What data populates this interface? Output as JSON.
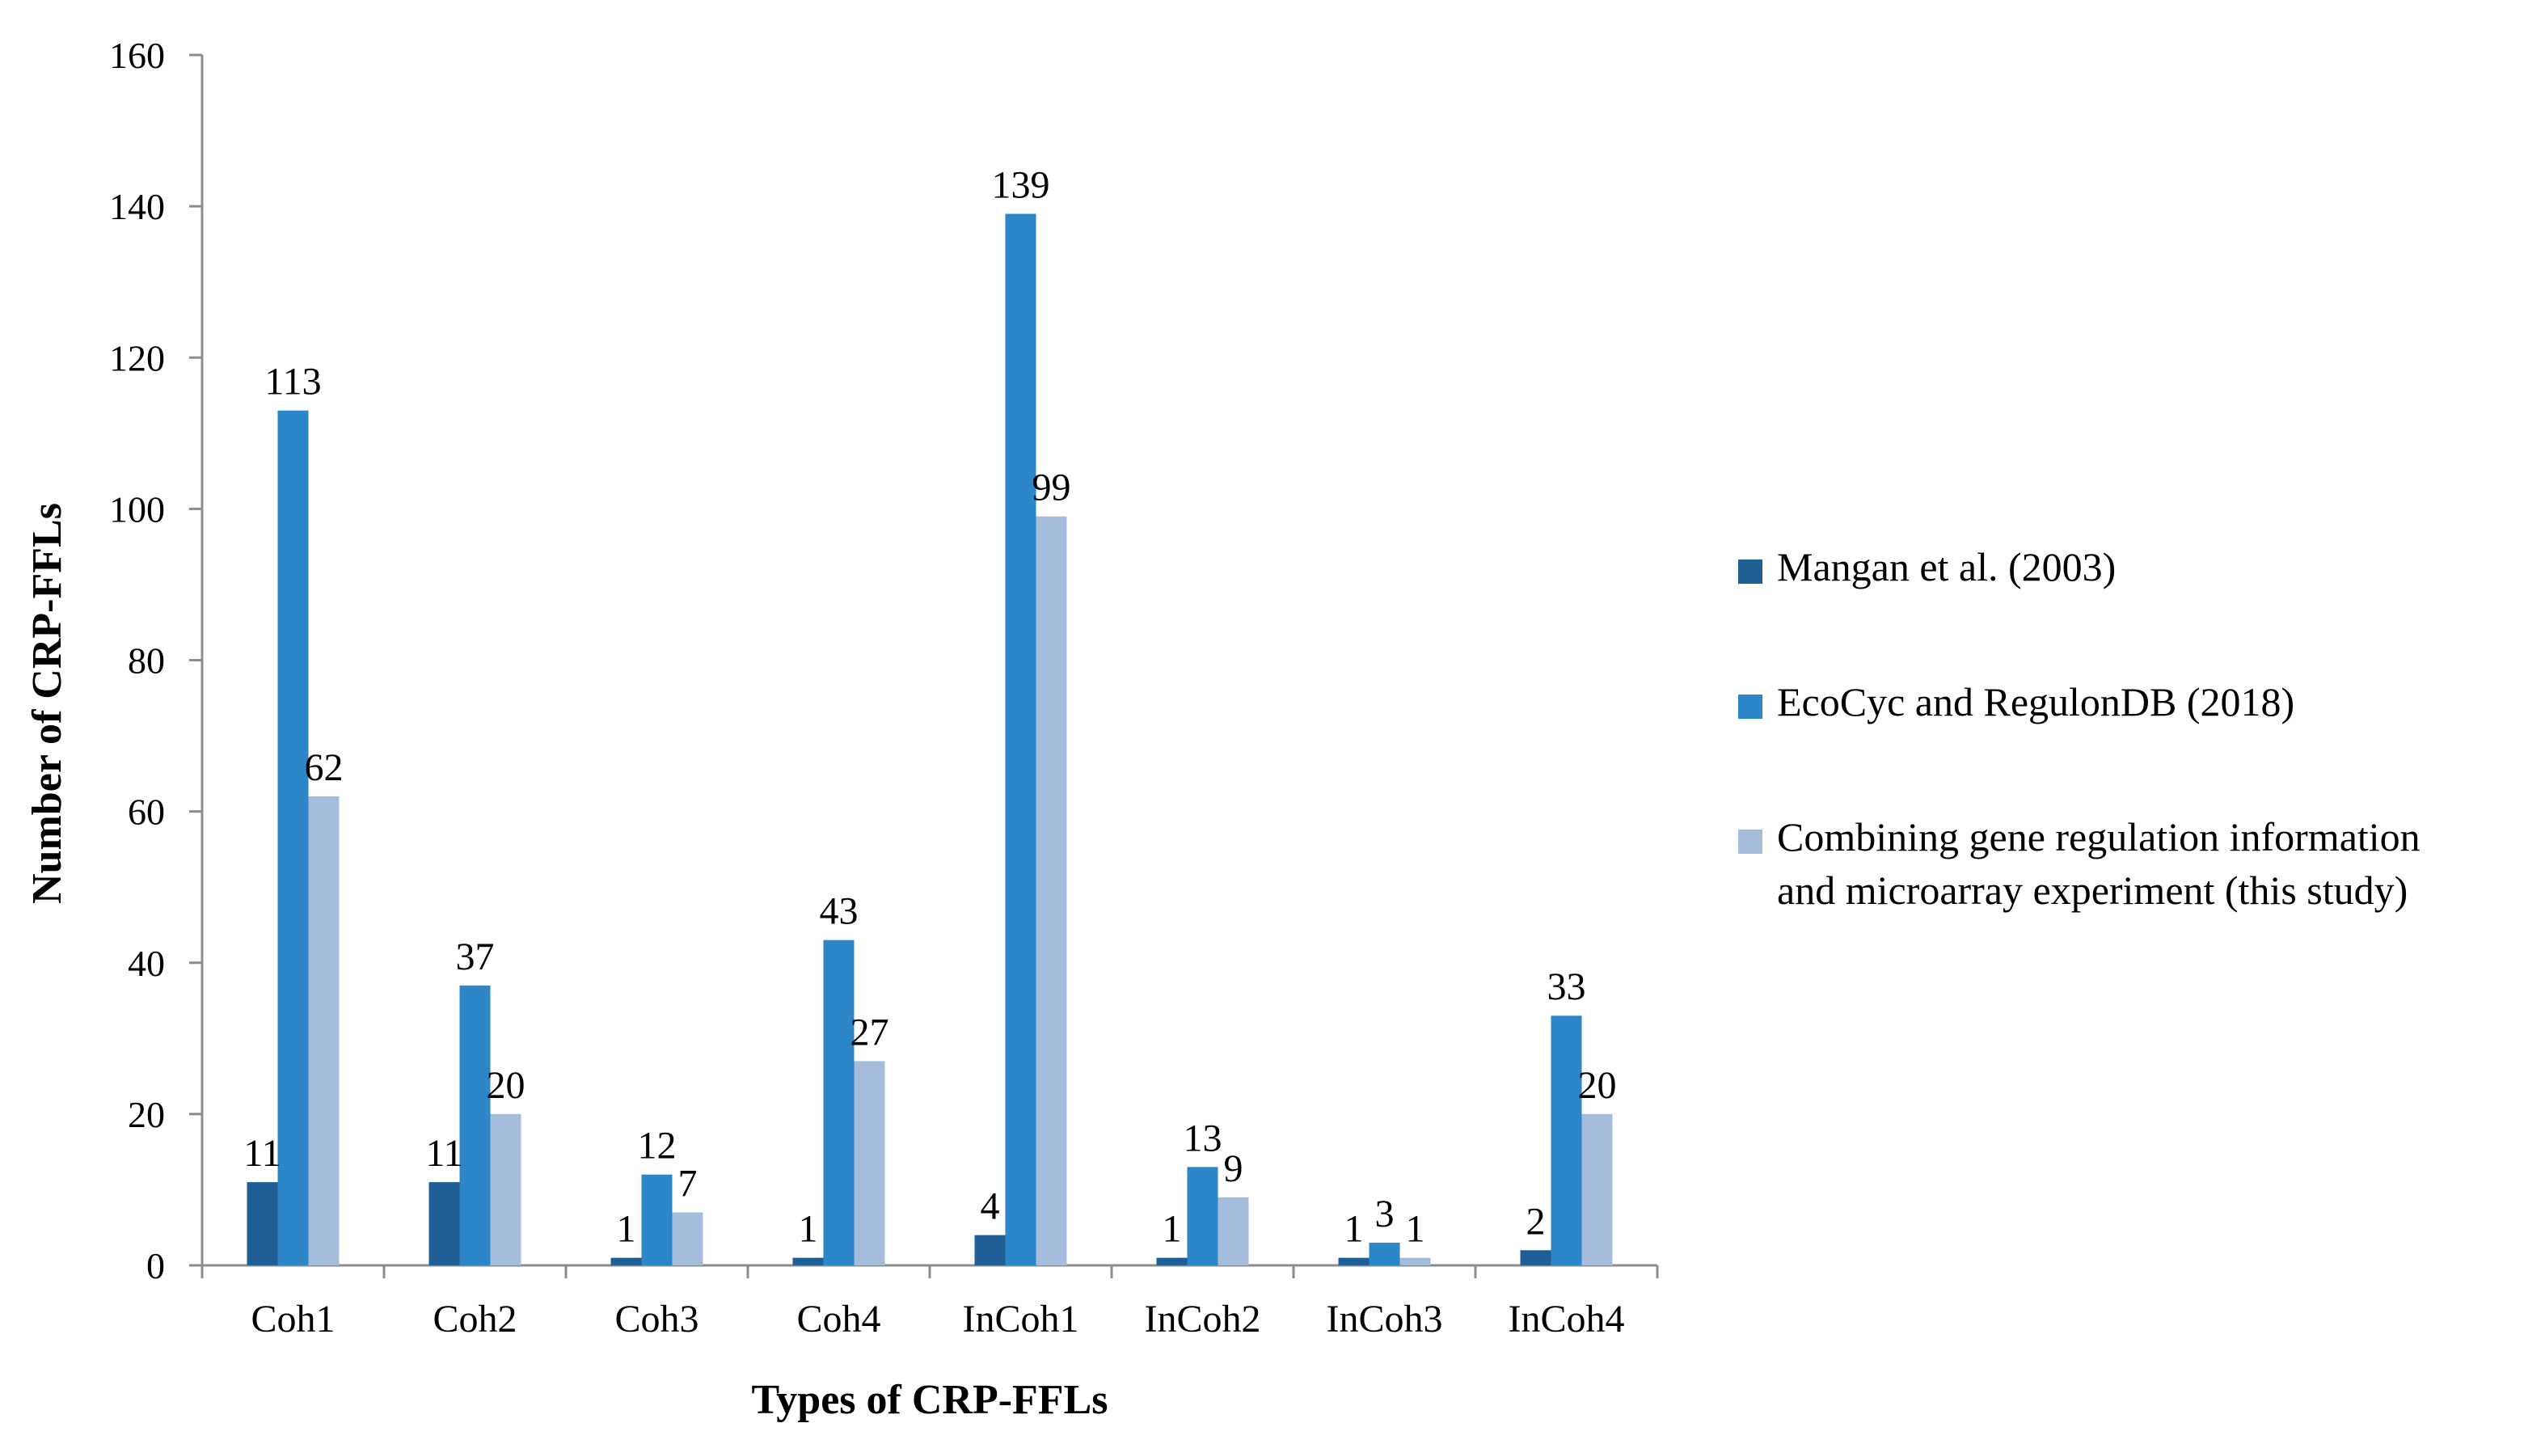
{
  "chart_data": {
    "type": "bar",
    "title": "",
    "xlabel": "Types of CRP-FFLs",
    "ylabel": "Number of CRP-FFLs",
    "ylim": [
      0,
      160
    ],
    "yticks": [
      0,
      20,
      40,
      60,
      80,
      100,
      120,
      140,
      160
    ],
    "grid": false,
    "legend_position": "right",
    "categories": [
      "Coh1",
      "Coh2",
      "Coh3",
      "Coh4",
      "InCoh1",
      "InCoh2",
      "InCoh3",
      "InCoh4"
    ],
    "series": [
      {
        "name": "Mangan et al. (2003)",
        "legend_lines": [
          "Mangan et al. (2003)"
        ],
        "color": "#1f5f96",
        "values": [
          11,
          11,
          1,
          1,
          4,
          1,
          1,
          2
        ],
        "labels": [
          "11",
          "11",
          "1",
          "1",
          "4",
          "1",
          "1",
          "2"
        ]
      },
      {
        "name": "EcoCyc and RegulonDB (2018)",
        "legend_lines": [
          "EcoCyc and RegulonDB (2018)"
        ],
        "color": "#2c86c8",
        "values": [
          113,
          37,
          12,
          43,
          139,
          13,
          3,
          33
        ],
        "labels": [
          "113",
          "37",
          "12",
          "43",
          "139",
          "13",
          "3",
          "33"
        ]
      },
      {
        "name": "Combining gene regulation information and microarray experiment (this study)",
        "legend_lines": [
          "Combining gene regulation information",
          "and microarray experiment (this study)"
        ],
        "color": "#a6bcdc",
        "values": [
          62,
          20,
          7,
          27,
          99,
          9,
          1,
          20
        ],
        "labels": [
          "62",
          "20",
          "7",
          "27",
          "99",
          "9",
          "1",
          "20"
        ]
      }
    ]
  }
}
